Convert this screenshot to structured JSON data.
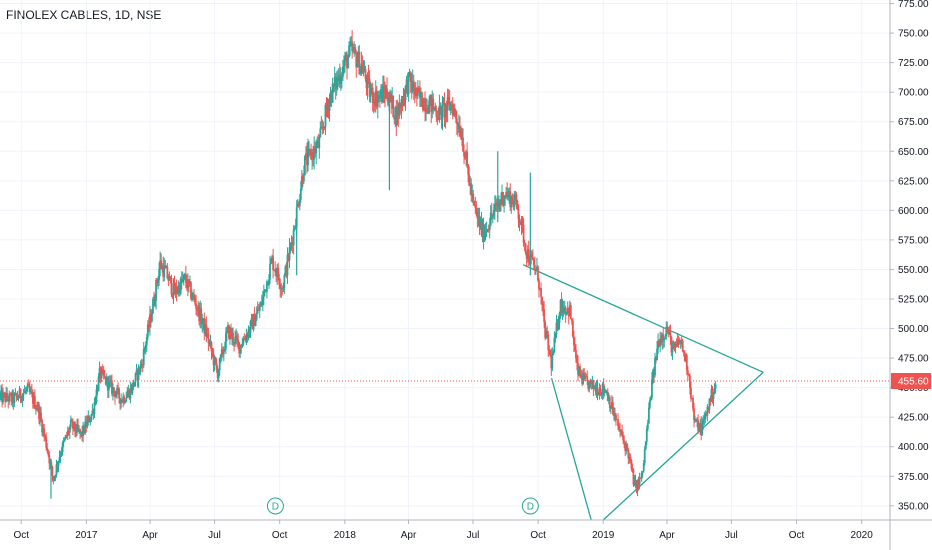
{
  "header": {
    "title": "FINOLEX CABLES, 1D, NSE"
  },
  "chart_data": {
    "type": "candlestick",
    "title": "FINOLEX CABLES, 1D, NSE",
    "symbol": "FINOLEX CABLES",
    "interval": "1D",
    "exchange": "NSE",
    "ylim": [
      338,
      778
    ],
    "y_ticks": [
      350,
      375,
      400,
      425,
      450,
      475,
      500,
      525,
      550,
      575,
      600,
      625,
      650,
      675,
      700,
      725,
      750,
      775
    ],
    "y_tick_labels": [
      "350.00",
      "375.00",
      "400.00",
      "425.00",
      "450.00",
      "475.00",
      "500.00",
      "525.00",
      "550.00",
      "575.00",
      "600.00",
      "625.00",
      "650.00",
      "675.00",
      "700.00",
      "725.00",
      "750.00",
      "775.00"
    ],
    "x_range": [
      "2016-09-01",
      "2020-02-10"
    ],
    "x_ticks": [
      {
        "date": "2016-10-01",
        "label": "Oct"
      },
      {
        "date": "2017-01-01",
        "label": "2017"
      },
      {
        "date": "2017-04-01",
        "label": "Apr"
      },
      {
        "date": "2017-07-01",
        "label": "Jul"
      },
      {
        "date": "2017-10-01",
        "label": "Oct"
      },
      {
        "date": "2018-01-01",
        "label": "2018"
      },
      {
        "date": "2018-04-01",
        "label": "Apr"
      },
      {
        "date": "2018-07-01",
        "label": "Jul"
      },
      {
        "date": "2018-10-01",
        "label": "Oct"
      },
      {
        "date": "2019-01-01",
        "label": "2019"
      },
      {
        "date": "2019-04-01",
        "label": "Apr"
      },
      {
        "date": "2019-07-01",
        "label": "Jul"
      },
      {
        "date": "2019-10-01",
        "label": "Oct"
      },
      {
        "date": "2020-01-01",
        "label": "2020"
      }
    ],
    "price_path": [
      [
        "2016-09-01",
        442
      ],
      [
        "2016-09-20",
        440
      ],
      [
        "2016-10-10",
        448
      ],
      [
        "2016-10-25",
        432
      ],
      [
        "2016-11-08",
        395
      ],
      [
        "2016-11-15",
        372
      ],
      [
        "2016-11-25",
        395
      ],
      [
        "2016-12-10",
        418
      ],
      [
        "2016-12-25",
        410
      ],
      [
        "2017-01-10",
        430
      ],
      [
        "2017-01-20",
        462
      ],
      [
        "2017-02-05",
        450
      ],
      [
        "2017-02-20",
        440
      ],
      [
        "2017-03-05",
        448
      ],
      [
        "2017-03-20",
        470
      ],
      [
        "2017-04-05",
        520
      ],
      [
        "2017-04-15",
        555
      ],
      [
        "2017-04-25",
        545
      ],
      [
        "2017-05-05",
        530
      ],
      [
        "2017-05-20",
        542
      ],
      [
        "2017-06-05",
        520
      ],
      [
        "2017-06-20",
        495
      ],
      [
        "2017-07-05",
        462
      ],
      [
        "2017-07-20",
        498
      ],
      [
        "2017-08-05",
        485
      ],
      [
        "2017-08-20",
        500
      ],
      [
        "2017-09-05",
        520
      ],
      [
        "2017-09-20",
        558
      ],
      [
        "2017-10-05",
        535
      ],
      [
        "2017-10-20",
        580
      ],
      [
        "2017-11-05",
        640
      ],
      [
        "2017-11-25",
        655
      ],
      [
        "2017-12-10",
        695
      ],
      [
        "2017-12-25",
        715
      ],
      [
        "2018-01-10",
        735
      ],
      [
        "2018-01-25",
        722
      ],
      [
        "2018-02-05",
        700
      ],
      [
        "2018-02-15",
        695
      ],
      [
        "2018-03-01",
        700
      ],
      [
        "2018-03-15",
        680
      ],
      [
        "2018-04-01",
        710
      ],
      [
        "2018-04-15",
        695
      ],
      [
        "2018-05-01",
        690
      ],
      [
        "2018-05-15",
        682
      ],
      [
        "2018-06-01",
        690
      ],
      [
        "2018-06-15",
        665
      ],
      [
        "2018-07-01",
        605
      ],
      [
        "2018-07-15",
        580
      ],
      [
        "2018-08-01",
        600
      ],
      [
        "2018-08-15",
        615
      ],
      [
        "2018-09-01",
        605
      ],
      [
        "2018-09-15",
        565
      ],
      [
        "2018-10-01",
        545
      ],
      [
        "2018-10-10",
        500
      ],
      [
        "2018-10-20",
        470
      ],
      [
        "2018-11-01",
        520
      ],
      [
        "2018-11-15",
        515
      ],
      [
        "2018-11-25",
        465
      ],
      [
        "2018-12-05",
        455
      ],
      [
        "2018-12-20",
        450
      ],
      [
        "2019-01-05",
        448
      ],
      [
        "2019-01-20",
        420
      ],
      [
        "2019-02-05",
        395
      ],
      [
        "2019-02-15",
        365
      ],
      [
        "2019-02-25",
        375
      ],
      [
        "2019-03-10",
        450
      ],
      [
        "2019-03-20",
        490
      ],
      [
        "2019-04-01",
        500
      ],
      [
        "2019-04-10",
        480
      ],
      [
        "2019-04-20",
        490
      ],
      [
        "2019-05-01",
        465
      ],
      [
        "2019-05-10",
        420
      ],
      [
        "2019-05-20",
        415
      ],
      [
        "2019-06-01",
        440
      ],
      [
        "2019-06-10",
        455.6
      ]
    ],
    "spikes": [
      {
        "date": "2018-09-20",
        "high": 632,
        "low": 545
      },
      {
        "date": "2018-08-05",
        "high": 650,
        "low": 590
      },
      {
        "date": "2017-10-25",
        "high": 600,
        "low": 545
      },
      {
        "date": "2018-03-05",
        "high": 700,
        "low": 617
      },
      {
        "date": "2016-11-12",
        "high": 390,
        "low": 356
      }
    ],
    "last_price": 455.6,
    "last_price_label": "455.60",
    "trendlines": [
      {
        "name": "upper",
        "from": [
          "2018-09-10",
          554
        ],
        "to": [
          "2019-08-15",
          463
        ]
      },
      {
        "name": "lower",
        "from": [
          "2019-01-01",
          338
        ],
        "to": [
          "2019-08-15",
          463
        ]
      },
      {
        "name": "steep",
        "from": [
          "2018-10-20",
          458
        ],
        "to": [
          "2018-12-15",
          338
        ]
      }
    ],
    "event_markers": [
      {
        "date": "2017-09-25",
        "label": "D"
      },
      {
        "date": "2018-09-20",
        "label": "D"
      }
    ],
    "colors": {
      "up": "#26a69a",
      "down": "#ef5350",
      "trendline": "#26a69a",
      "price_line": "#ef5350",
      "grid": "#f0f3fa",
      "axis": "#131722"
    },
    "grid": true
  }
}
